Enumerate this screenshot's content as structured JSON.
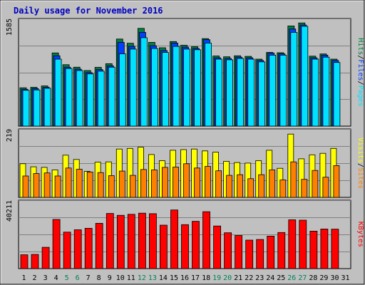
{
  "chart_data": {
    "type": "bar",
    "title": "Daily usage for November 2016",
    "x": [
      "1",
      "2",
      "3",
      "4",
      "5",
      "6",
      "7",
      "8",
      "9",
      "10",
      "11",
      "12",
      "13",
      "14",
      "15",
      "16",
      "17",
      "18",
      "19",
      "20",
      "21",
      "22",
      "23",
      "24",
      "25",
      "26",
      "27",
      "28",
      "29",
      "30",
      "31"
    ],
    "weekend_days": [
      "5",
      "6",
      "12",
      "13",
      "19",
      "20",
      "26",
      "27"
    ],
    "panels": [
      {
        "name": "hits-files-pages",
        "max_label": "1585",
        "ylim": [
          0,
          1585
        ],
        "legend": [
          "Pages",
          "/",
          "Files",
          "/",
          "Hits"
        ],
        "series": [
          {
            "name": "Hits",
            "values": [
              572,
              580,
              600,
              1093,
              917,
              880,
              830,
              878,
              932,
              1300,
              1237,
              1459,
              1250,
              1170,
              1263,
              1207,
              1185,
              1306,
              1047,
              1035,
              1050,
              1041,
              1000,
              1100,
              1096,
              1496,
              1540,
              1045,
              1078,
              1000,
              0
            ]
          },
          {
            "name": "Files",
            "values": [
              550,
              560,
              580,
              1050,
              880,
              850,
              800,
              845,
              900,
              1250,
              1190,
              1400,
              1200,
              1130,
              1240,
              1180,
              1160,
              1290,
              1020,
              1010,
              1030,
              1020,
              980,
              1090,
              1080,
              1450,
              1510,
              1020,
              1060,
              980,
              0
            ]
          },
          {
            "name": "Pages",
            "values": [
              535,
              540,
              565,
              1000,
              860,
              830,
              780,
              820,
              880,
              1080,
              1150,
              1320,
              1160,
              1100,
              1190,
              1150,
              1140,
              1240,
              1000,
              990,
              1010,
              1000,
              960,
              1060,
              1060,
              1400,
              1490,
              1000,
              1030,
              950,
              0
            ]
          }
        ]
      },
      {
        "name": "visits-sites",
        "max_label": "219",
        "ylim": [
          0,
          219
        ],
        "legend": [
          "Sites",
          "/",
          "Visits"
        ],
        "series": [
          {
            "name": "Visits",
            "values": [
              110,
              100,
              98,
              90,
              138,
              124,
              85,
              115,
              116,
              158,
              160,
              164,
              140,
              120,
              154,
              156,
              158,
              152,
              148,
              118,
              114,
              112,
              120,
              154,
              95,
              207,
              126,
              139,
              144,
              160,
              0
            ]
          },
          {
            "name": "Sites",
            "values": [
              70,
              78,
              80,
              70,
              96,
              92,
              83,
              81,
              71,
              86,
              72,
              91,
              90,
              98,
              99,
              110,
              96,
              101,
              87,
              72,
              74,
              61,
              74,
              90,
              57,
              116,
              59,
              88,
              66,
              104,
              0
            ]
          }
        ]
      },
      {
        "name": "kbytes",
        "max_label": "40211",
        "ylim": [
          0,
          40211
        ],
        "legend": [
          "KBytes"
        ],
        "series": [
          {
            "name": "KBytes",
            "values": [
              8300,
              8500,
              12800,
              29500,
              21900,
              23300,
              24200,
              27200,
              33100,
              32000,
              32600,
              33300,
              33000,
              26100,
              35200,
              26400,
              28400,
              34200,
              25600,
              21500,
              19900,
              17100,
              17500,
              19500,
              21700,
              29300,
              29100,
              22500,
              23800,
              23700,
              0
            ]
          }
        ]
      }
    ]
  },
  "colors": {
    "page_bg": "#ffffff",
    "frame_bg": "#c0c0c0",
    "plot_bg": "#c0c0c0",
    "grid": "#808080",
    "title": "#0000c0",
    "weekday_label": "#000000",
    "weekend_label": "#00805c",
    "hits": "#008040",
    "files": "#0040ff",
    "pages": "#00e0ff",
    "visits": "#ffff00",
    "sites": "#ff8000",
    "kbytes": "#ff0000",
    "bar_border": "#000000"
  }
}
